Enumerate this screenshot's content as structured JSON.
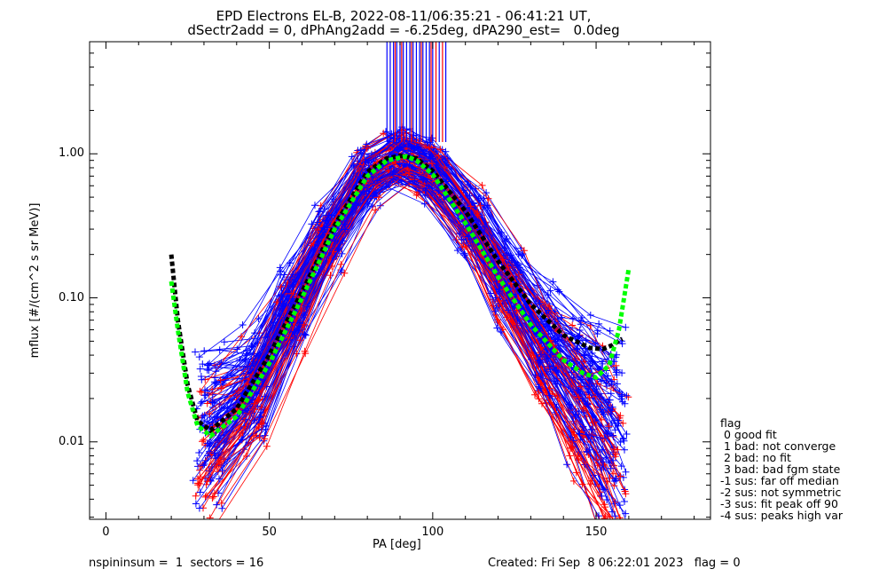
{
  "title": {
    "line1": "EPD Electrons EL-B, 2022-08-11/06:35:21 - 06:41:21 UT,",
    "line2": "dSectr2add = 0, dPhAng2add = -6.25deg, dPA290_est=   0.0deg"
  },
  "footer": {
    "left": "nspininsum =  1  sectors = 16",
    "right": "Created: Fri Sep  8 06:22:01 2023   flag = 0"
  },
  "legend": {
    "title": "flag",
    "items": [
      " 0 good fit",
      " 1 bad: not converge",
      " 2 bad: no fit",
      " 3 bad: bad fgm state",
      "-1 sus: far off median",
      "-2 sus: not symmetric",
      "-3 sus: fit peak off 90",
      "-4 sus: peaks high var"
    ]
  },
  "colors": {
    "series_a": "#0000ff",
    "series_b": "#ff0000",
    "fit_a": "#000000",
    "fit_b": "#00ff00"
  },
  "chart_data": {
    "type": "line",
    "xlabel": "PA [deg]",
    "ylabel": "mflux [#/(cm^2 s sr MeV)]",
    "xlim": [
      -5,
      185
    ],
    "ylim": [
      0.0029,
      6.0
    ],
    "yscale": "log",
    "xticks": [
      0,
      50,
      100,
      150
    ],
    "xtick_labels": [
      "0",
      "50",
      "100",
      "150"
    ],
    "yticks": [
      0.01,
      0.1,
      1.0
    ],
    "ytick_labels": [
      "0.01",
      "0.10",
      "1.00"
    ],
    "profile_pa": [
      32,
      45,
      57,
      68,
      80,
      90,
      100,
      112,
      123,
      135,
      146,
      155
    ],
    "profile_flux": [
      0.012,
      0.025,
      0.085,
      0.26,
      0.7,
      0.97,
      0.78,
      0.34,
      0.125,
      0.045,
      0.02,
      0.011
    ],
    "fit_a": {
      "x": [
        20,
        22,
        25,
        28,
        32,
        40,
        50,
        60,
        70,
        80,
        86,
        90,
        95,
        100,
        110,
        120,
        130,
        140,
        148,
        152,
        155,
        158
      ],
      "y": [
        0.2,
        0.07,
        0.025,
        0.014,
        0.012,
        0.017,
        0.04,
        0.11,
        0.32,
        0.75,
        0.93,
        0.97,
        0.93,
        0.76,
        0.4,
        0.18,
        0.09,
        0.055,
        0.045,
        0.044,
        0.047,
        0.052
      ]
    },
    "fit_b": {
      "x": [
        20,
        22,
        25,
        28,
        32,
        40,
        50,
        60,
        70,
        80,
        86,
        92,
        95,
        100,
        110,
        120,
        130,
        140,
        146,
        150,
        154,
        157,
        160
      ],
      "y": [
        0.13,
        0.06,
        0.022,
        0.013,
        0.011,
        0.015,
        0.035,
        0.1,
        0.3,
        0.7,
        0.9,
        0.96,
        0.9,
        0.72,
        0.33,
        0.14,
        0.065,
        0.037,
        0.03,
        0.028,
        0.034,
        0.06,
        0.16
      ]
    },
    "flag_ticks_a": [
      86,
      87,
      88,
      89,
      90,
      91,
      92,
      93,
      94,
      95,
      96,
      97,
      98,
      99,
      100,
      102,
      104
    ],
    "flag_ticks_b": [
      88.5,
      90.5,
      93.5,
      96.5,
      99.5,
      101,
      103
    ]
  }
}
